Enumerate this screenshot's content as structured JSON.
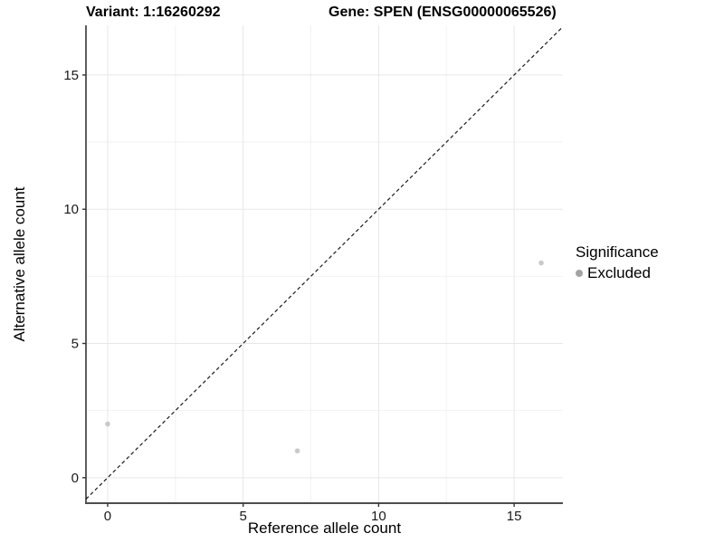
{
  "header": {
    "variant_title": "Variant: 1:16260292",
    "gene_title": "Gene: SPEN (ENSG00000065526)"
  },
  "chart_data": {
    "type": "scatter",
    "xlabel": "Reference allele count",
    "ylabel": "Alternative allele count",
    "xlim": [
      -0.8,
      16.8
    ],
    "ylim": [
      -0.95,
      16.85
    ],
    "x_major_ticks": [
      0,
      5,
      10,
      15
    ],
    "x_minor_ticks": [
      2.5,
      7.5,
      12.5
    ],
    "y_major_ticks": [
      0,
      5,
      10,
      15
    ],
    "y_minor_ticks": [
      2.5,
      7.5,
      12.5
    ],
    "grid": true,
    "series": [
      {
        "name": "Excluded",
        "color": "#c9c9c9",
        "point_radius": 2.8,
        "points": [
          {
            "x": 0,
            "y": 2
          },
          {
            "x": 7,
            "y": 1
          },
          {
            "x": 16,
            "y": 8
          }
        ]
      }
    ],
    "abline": {
      "slope": 1,
      "intercept": 0,
      "style": "dashed",
      "color": "#1a1a1a"
    },
    "legend": {
      "title": "Significance",
      "position": "right",
      "items": [
        {
          "label": "Excluded",
          "color": "#a3a3a3"
        }
      ]
    },
    "colors": {
      "grid_major": "#e7e7e7",
      "grid_minor": "#f2f2f2",
      "axis_line_y": "#1a1a1a",
      "axis_line_x": "#4d4d4d",
      "tick": "#333333",
      "tick_label": "#1a1a1a"
    }
  }
}
